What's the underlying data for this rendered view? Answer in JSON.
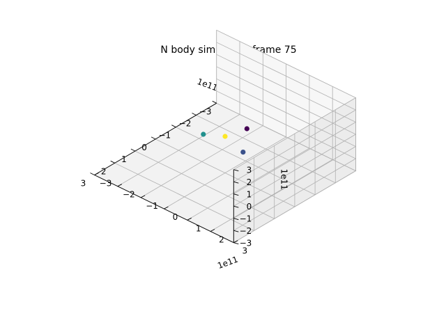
{
  "title": "N body simulation frame 75",
  "chart_data": {
    "type": "scatter",
    "projection": "3d",
    "title": "N body simulation frame 75",
    "xlim": [
      -3,
      3
    ],
    "ylim": [
      -3,
      3
    ],
    "zlim": [
      -3,
      3
    ],
    "x_ticks": [
      "−3",
      "−2",
      "−1",
      "0",
      "1",
      "2",
      "3"
    ],
    "y_ticks": [
      "−3",
      "−2",
      "−1",
      "0",
      "1",
      "2",
      "3"
    ],
    "z_ticks": [
      "−3",
      "−2",
      "−1",
      "0",
      "1",
      "2",
      "3"
    ],
    "x_offset_label": "1e11",
    "y_offset_label": "1e11",
    "z_offset_label": "1e11",
    "grid": true,
    "colormap": "viridis",
    "points": [
      {
        "x": -0.5,
        "y": 0.5,
        "z": 0.6,
        "color": "#440154"
      },
      {
        "x": 0.6,
        "y": 1.3,
        "z": 0.5,
        "color": "#3b528b"
      },
      {
        "x": 0.5,
        "y": -0.5,
        "z": 0.2,
        "color": "#21908d"
      },
      {
        "x": 0.0,
        "y": 0.0,
        "z": 0.0,
        "color": "#fde725"
      }
    ]
  }
}
